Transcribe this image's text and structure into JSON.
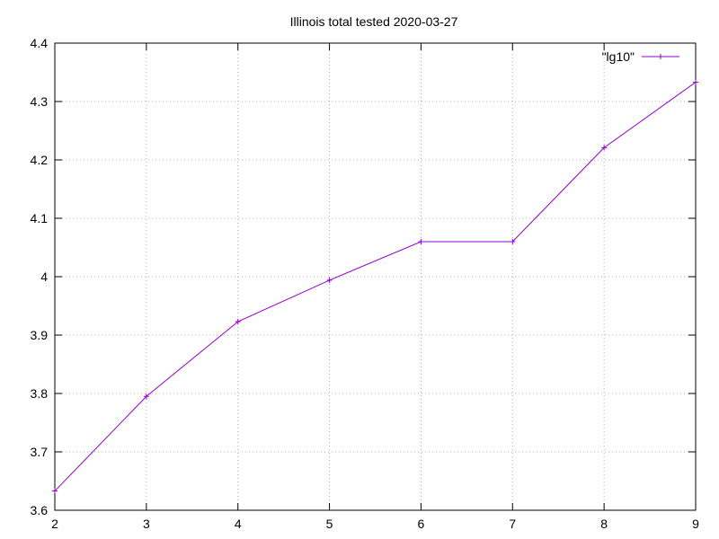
{
  "chart_data": {
    "type": "line",
    "title": "Illinois total tested 2020-03-27",
    "xlabel": "",
    "ylabel": "",
    "xlim": [
      2,
      9
    ],
    "ylim": [
      3.6,
      4.4
    ],
    "x_ticks": [
      "2",
      "3",
      "4",
      "5",
      "6",
      "7",
      "8",
      "9"
    ],
    "y_ticks": [
      "3.6",
      "3.7",
      "3.8",
      "3.9",
      "4",
      "4.1",
      "4.2",
      "4.3",
      "4.4"
    ],
    "grid": true,
    "legend_position": "top-right",
    "series": [
      {
        "name": "\"lg10\"",
        "color": "#9400d3",
        "marker": "plus",
        "x": [
          2,
          3,
          4,
          5,
          6,
          7,
          8,
          9
        ],
        "y": [
          3.633,
          3.795,
          3.923,
          3.994,
          4.06,
          4.06,
          4.221,
          4.333
        ]
      }
    ]
  }
}
